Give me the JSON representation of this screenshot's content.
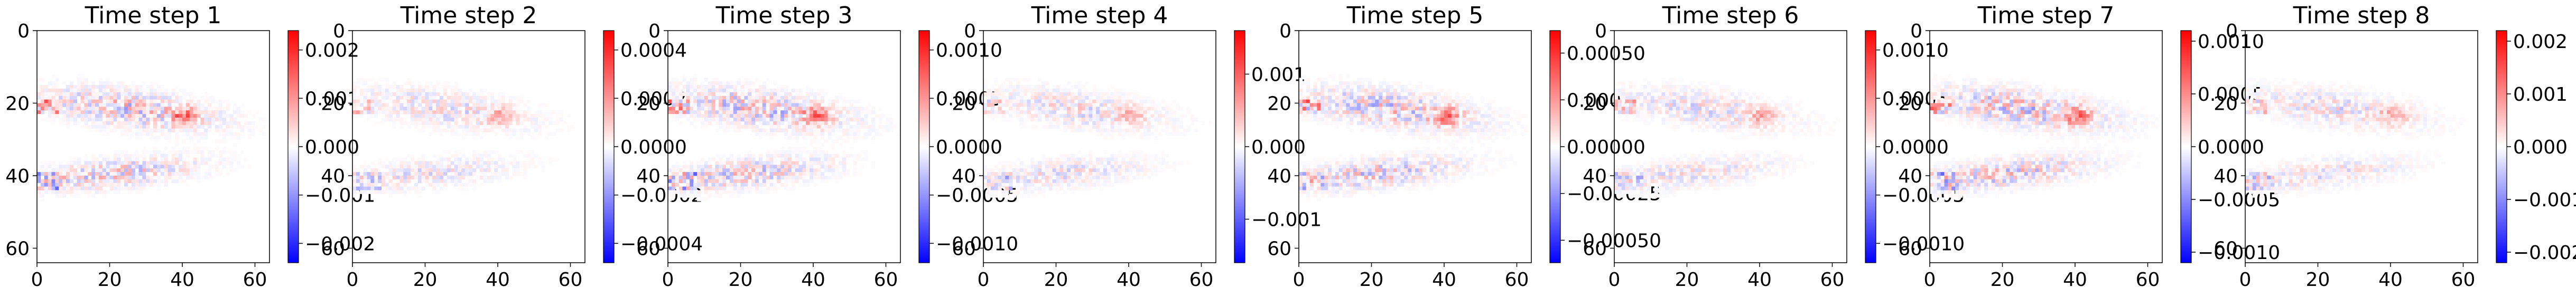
{
  "chart_data": [
    {
      "type": "heatmap",
      "title": "Time step 1",
      "extent": [
        0,
        64
      ],
      "xticks": [
        "0",
        "20",
        "40",
        "60"
      ],
      "yticks": [
        "0",
        "20",
        "40",
        "60"
      ],
      "colorbar": {
        "cmap": "bwr",
        "range": [
          -0.0024,
          0.0024
        ],
        "ticks": [
          {
            "v": 0.002,
            "label": "0.002"
          },
          {
            "v": 0.001,
            "label": "0.001"
          },
          {
            "v": 0,
            "label": "0.000"
          },
          {
            "v": -0.001,
            "label": "−0.001"
          },
          {
            "v": -0.002,
            "label": "−0.002"
          }
        ]
      }
    },
    {
      "type": "heatmap",
      "title": "Time step 2",
      "extent": [
        0,
        64
      ],
      "xticks": [
        "0",
        "20",
        "40",
        "60"
      ],
      "yticks": [
        "0",
        "20",
        "40",
        "60"
      ],
      "colorbar": {
        "cmap": "bwr",
        "range": [
          -0.00048,
          0.00048
        ],
        "ticks": [
          {
            "v": 0.0004,
            "label": "0.0004"
          },
          {
            "v": 0.0002,
            "label": "0.0002"
          },
          {
            "v": 0,
            "label": "0.0000"
          },
          {
            "v": -0.0002,
            "label": "−0.0002"
          },
          {
            "v": -0.0004,
            "label": "−0.0004"
          }
        ]
      }
    },
    {
      "type": "heatmap",
      "title": "Time step 3",
      "extent": [
        0,
        64
      ],
      "xticks": [
        "0",
        "20",
        "40",
        "60"
      ],
      "yticks": [
        "0",
        "20",
        "40",
        "60"
      ],
      "colorbar": {
        "cmap": "bwr",
        "range": [
          -0.0012,
          0.0012
        ],
        "ticks": [
          {
            "v": 0.001,
            "label": "0.0010"
          },
          {
            "v": 0.0005,
            "label": "0.0005"
          },
          {
            "v": 0,
            "label": "0.0000"
          },
          {
            "v": -0.0005,
            "label": "−0.0005"
          },
          {
            "v": -0.001,
            "label": "−0.0010"
          }
        ]
      }
    },
    {
      "type": "heatmap",
      "title": "Time step 4",
      "extent": [
        0,
        64
      ],
      "xticks": [
        "0",
        "20",
        "40",
        "60"
      ],
      "yticks": [
        "0",
        "20",
        "40",
        "60"
      ],
      "colorbar": {
        "cmap": "bwr",
        "range": [
          -0.0016,
          0.0016
        ],
        "ticks": [
          {
            "v": 0.001,
            "label": "0.001"
          },
          {
            "v": 0,
            "label": "0.000"
          },
          {
            "v": -0.001,
            "label": "−0.001"
          }
        ]
      }
    },
    {
      "type": "heatmap",
      "title": "Time step 5",
      "extent": [
        0,
        64
      ],
      "xticks": [
        "0",
        "20",
        "40",
        "60"
      ],
      "yticks": [
        "0",
        "20",
        "40",
        "60"
      ],
      "colorbar": {
        "cmap": "bwr",
        "range": [
          -0.00062,
          0.00062
        ],
        "ticks": [
          {
            "v": 0.0005,
            "label": "0.00050"
          },
          {
            "v": 0.00025,
            "label": "0.00025"
          },
          {
            "v": 0,
            "label": "0.00000"
          },
          {
            "v": -0.00025,
            "label": "−0.00025"
          },
          {
            "v": -0.0005,
            "label": "−0.00050"
          }
        ]
      }
    },
    {
      "type": "heatmap",
      "title": "Time step 6",
      "extent": [
        0,
        64
      ],
      "xticks": [
        "0",
        "20",
        "40",
        "60"
      ],
      "yticks": [
        "0",
        "20",
        "40",
        "60"
      ],
      "colorbar": {
        "cmap": "bwr",
        "range": [
          -0.0012,
          0.0012
        ],
        "ticks": [
          {
            "v": 0.001,
            "label": "0.0010"
          },
          {
            "v": 0.0005,
            "label": "0.0005"
          },
          {
            "v": 0,
            "label": "0.0000"
          },
          {
            "v": -0.0005,
            "label": "−0.0005"
          },
          {
            "v": -0.001,
            "label": "−0.0010"
          }
        ]
      }
    },
    {
      "type": "heatmap",
      "title": "Time step 7",
      "extent": [
        0,
        64
      ],
      "xticks": [
        "0",
        "20",
        "40",
        "60"
      ],
      "yticks": [
        "0",
        "20",
        "40",
        "60"
      ],
      "colorbar": {
        "cmap": "bwr",
        "range": [
          -0.0011,
          0.0011
        ],
        "ticks": [
          {
            "v": 0.001,
            "label": "0.0010"
          },
          {
            "v": 0.0005,
            "label": "0.0005"
          },
          {
            "v": 0,
            "label": "0.0000"
          },
          {
            "v": -0.0005,
            "label": "−0.0005"
          },
          {
            "v": -0.001,
            "label": "−0.0010"
          }
        ]
      }
    },
    {
      "type": "heatmap",
      "title": "Time step 8",
      "extent": [
        0,
        64
      ],
      "xticks": [
        "0",
        "20",
        "40",
        "60"
      ],
      "yticks": [
        "0",
        "20",
        "40",
        "60"
      ],
      "colorbar": {
        "cmap": "bwr",
        "range": [
          -0.0022,
          0.0022
        ],
        "ticks": [
          {
            "v": 0.002,
            "label": "0.002"
          },
          {
            "v": 0.001,
            "label": "0.001"
          },
          {
            "v": 0,
            "label": "0.000"
          },
          {
            "v": -0.001,
            "label": "−0.001"
          },
          {
            "v": -0.002,
            "label": "−0.002"
          }
        ]
      }
    }
  ]
}
